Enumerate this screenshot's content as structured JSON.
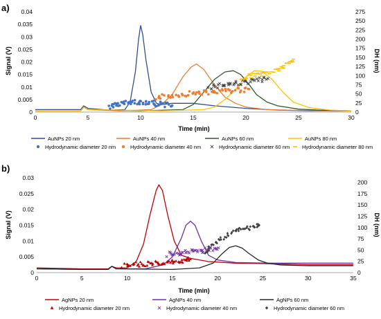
{
  "chart_data": [
    {
      "panel_label": "a)",
      "type": "line",
      "xlabel": "Time (min)",
      "ylabel": "Signal (V)",
      "y2label": "DH (nm)",
      "xlim": [
        0,
        30
      ],
      "ylim": [
        0,
        0.04
      ],
      "y2lim": [
        0,
        275
      ],
      "xticks": [
        0,
        5,
        10,
        15,
        20,
        25,
        30
      ],
      "yticks": [
        0,
        0.005,
        0.01,
        0.015,
        0.02,
        0.025,
        0.03,
        0.035,
        0.04
      ],
      "ytick_labels": [
        "0",
        "0.005",
        "0.01",
        "0.015",
        "0.02",
        "0.025",
        "0.03",
        "0.035",
        "0.04"
      ],
      "y2ticks": [
        0,
        25,
        50,
        75,
        100,
        125,
        150,
        175,
        200,
        225,
        250,
        275
      ],
      "grid": false,
      "legend_position": "bottom",
      "series": [
        {
          "name": "AuNPs 20 nm",
          "kind": "line",
          "color": "#2f4f8f",
          "x": [
            0,
            4.3,
            4.6,
            5,
            7,
            8.5,
            9.0,
            9.5,
            9.8,
            10.0,
            10.2,
            10.5,
            11.0,
            11.5,
            12,
            13,
            15,
            17,
            20,
            23,
            26,
            30
          ],
          "values": [
            0.001,
            0.001,
            0.0025,
            0.0015,
            0.0008,
            0.001,
            0.004,
            0.016,
            0.029,
            0.0345,
            0.031,
            0.021,
            0.008,
            0.0035,
            0.003,
            0.0035,
            0.0035,
            0.0025,
            0.0015,
            0.0008,
            0.0005,
            0.0005
          ]
        },
        {
          "name": "AuNPs 40 nm",
          "kind": "line",
          "color": "#ed7d31",
          "x": [
            0,
            4.3,
            4.6,
            5,
            8,
            11,
            12,
            13,
            14,
            14.8,
            15.3,
            16,
            17,
            18,
            19,
            20,
            22,
            24,
            27,
            30
          ],
          "values": [
            0.0005,
            0.0005,
            0.002,
            0.001,
            0.0005,
            0.001,
            0.003,
            0.007,
            0.014,
            0.018,
            0.0192,
            0.017,
            0.011,
            0.006,
            0.0035,
            0.002,
            0.001,
            0.0008,
            0.0006,
            0.0005
          ]
        },
        {
          "name": "AuNPs 60 nm",
          "kind": "line",
          "color": "#2d5a2d",
          "x": [
            0,
            4.3,
            4.6,
            5,
            10,
            14,
            15,
            16,
            17,
            18,
            18.8,
            19.5,
            20.3,
            21,
            22,
            23,
            25,
            27,
            30
          ],
          "values": [
            0.0005,
            0.0005,
            0.002,
            0.001,
            0.0005,
            0.001,
            0.003,
            0.008,
            0.013,
            0.016,
            0.0165,
            0.015,
            0.011,
            0.007,
            0.004,
            0.0025,
            0.0012,
            0.0008,
            0.0005
          ]
        },
        {
          "name": "AuNPs 80 nm",
          "kind": "line",
          "color": "#ffc000",
          "x": [
            0,
            4.3,
            4.6,
            5,
            12,
            16,
            17,
            18,
            19,
            20,
            20.8,
            21.5,
            22.5,
            23.5,
            24.5,
            26,
            28,
            30
          ],
          "values": [
            0.0005,
            0.0005,
            0.002,
            0.001,
            0.0005,
            0.001,
            0.002,
            0.005,
            0.009,
            0.014,
            0.0165,
            0.0163,
            0.013,
            0.008,
            0.004,
            0.0018,
            0.0008,
            0.0005
          ]
        },
        {
          "name": "Hydrodynamic diameter 20 nm",
          "kind": "markers",
          "marker": "circle",
          "color": "#4472c4",
          "axis": "y2",
          "x": [
            7.0,
            7.6,
            8.2,
            8.8,
            9.4,
            10.0,
            10.6,
            11.2,
            11.8,
            12.4,
            13.0
          ],
          "values": [
            15,
            20,
            23,
            25,
            27,
            28,
            27,
            25,
            22,
            20,
            18
          ]
        },
        {
          "name": "Hydrodynamic diameter 40 nm",
          "kind": "markers",
          "marker": "circle",
          "color": "#ed7d31",
          "axis": "y2",
          "x": [
            11.5,
            12.5,
            13.5,
            14.5,
            15.5,
            16.5,
            17.5,
            18.5,
            19.5,
            20.3
          ],
          "values": [
            40,
            43,
            47,
            50,
            53,
            55,
            57,
            59,
            61,
            63
          ]
        },
        {
          "name": "Hydrodynamic diameter 60 nm",
          "kind": "markers",
          "marker": "x",
          "color": "#404040",
          "axis": "y2",
          "x": [
            16.5,
            17.3,
            18.1,
            18.9,
            19.7,
            20.5,
            21.3,
            22.1
          ],
          "values": [
            68,
            72,
            75,
            78,
            81,
            84,
            88,
            92
          ]
        },
        {
          "name": "Hydrodynamic diameter 80 nm",
          "kind": "markers",
          "marker": "dash",
          "color": "#ffc000",
          "axis": "y2",
          "x": [
            19.5,
            20.3,
            21.1,
            21.9,
            22.7,
            23.4,
            24.0,
            24.5
          ],
          "values": [
            95,
            98,
            102,
            106,
            112,
            120,
            132,
            145
          ]
        }
      ]
    },
    {
      "panel_label": "b)",
      "type": "line",
      "xlabel": "Time (min)",
      "ylabel": "Signal (V)",
      "y2label": "DH (nm)",
      "xlim": [
        0,
        35
      ],
      "ylim": [
        0,
        0.03
      ],
      "y2lim": [
        0,
        210
      ],
      "xticks": [
        0,
        5,
        10,
        15,
        20,
        25,
        30,
        35
      ],
      "yticks": [
        0,
        0.005,
        0.01,
        0.015,
        0.02,
        0.025,
        0.03
      ],
      "ytick_labels": [
        "0",
        "0.005",
        "0.01",
        "0.015",
        "0.02",
        "0.025",
        "0.03"
      ],
      "y2ticks": [
        0,
        25,
        50,
        75,
        100,
        125,
        150,
        175,
        200
      ],
      "grid": false,
      "legend_position": "bottom",
      "series": [
        {
          "name": "AgNPs 20 nm",
          "kind": "line",
          "color": "#c00000",
          "x": [
            0,
            5,
            7.9,
            8.3,
            8.8,
            10,
            11,
            11.8,
            12.5,
            13.2,
            13.5,
            13.9,
            14.5,
            15.2,
            16,
            17,
            19,
            22,
            26,
            30,
            35
          ],
          "values": [
            0.0015,
            0.0012,
            0.0012,
            0.002,
            0.0015,
            0.0015,
            0.0035,
            0.009,
            0.018,
            0.026,
            0.0278,
            0.026,
            0.018,
            0.01,
            0.0055,
            0.0045,
            0.0035,
            0.003,
            0.0028,
            0.0025,
            0.0025
          ]
        },
        {
          "name": "AgNPs 40 nm",
          "kind": "line",
          "color": "#7030a0",
          "x": [
            0,
            5,
            7.9,
            8.3,
            8.8,
            12,
            14,
            15,
            16,
            16.5,
            17.0,
            17.5,
            18.2,
            19,
            20,
            22,
            26,
            30,
            35
          ],
          "values": [
            0.0012,
            0.001,
            0.001,
            0.002,
            0.0012,
            0.0012,
            0.0025,
            0.005,
            0.011,
            0.015,
            0.0163,
            0.015,
            0.01,
            0.0055,
            0.004,
            0.0032,
            0.003,
            0.003,
            0.003
          ]
        },
        {
          "name": "AgNPs 60 nm",
          "kind": "line",
          "color": "#262626",
          "x": [
            0,
            5,
            7.9,
            8.3,
            8.8,
            15,
            18,
            19.5,
            20.5,
            21.3,
            22,
            22.7,
            23.5,
            24.5,
            25.5,
            27,
            30,
            35
          ],
          "values": [
            0.0012,
            0.001,
            0.001,
            0.002,
            0.0012,
            0.001,
            0.0015,
            0.003,
            0.006,
            0.008,
            0.0085,
            0.0078,
            0.006,
            0.004,
            0.003,
            0.0024,
            0.0022,
            0.0022
          ]
        },
        {
          "name": "Hydrodynamic diameter 20 nm",
          "kind": "markers",
          "marker": "triangle",
          "color": "#c00000",
          "axis": "y2",
          "x": [
            9.5,
            10.3,
            11.1,
            11.9,
            12.7,
            13.5,
            14.3,
            15.1,
            15.9,
            16.5,
            17.0
          ],
          "values": [
            15,
            17,
            18,
            19,
            20,
            21,
            22,
            24,
            26,
            28,
            30
          ]
        },
        {
          "name": "Hydrodynamic diameter 40 nm",
          "kind": "markers",
          "marker": "x",
          "color": "#7030a0",
          "axis": "y2",
          "x": [
            14.5,
            15.3,
            16.1,
            16.9,
            17.7,
            18.5,
            19.3,
            20.1
          ],
          "values": [
            40,
            42,
            44,
            46,
            48,
            50,
            52,
            55
          ]
        },
        {
          "name": "Hydrodynamic diameter 60 nm",
          "kind": "markers",
          "marker": "diamond",
          "color": "#404040",
          "axis": "y2",
          "x": [
            18.5,
            19.3,
            20.1,
            20.9,
            21.7,
            22.5,
            23.3,
            24.1,
            24.6
          ],
          "values": [
            45,
            58,
            70,
            80,
            88,
            94,
            98,
            102,
            105
          ]
        }
      ]
    }
  ]
}
